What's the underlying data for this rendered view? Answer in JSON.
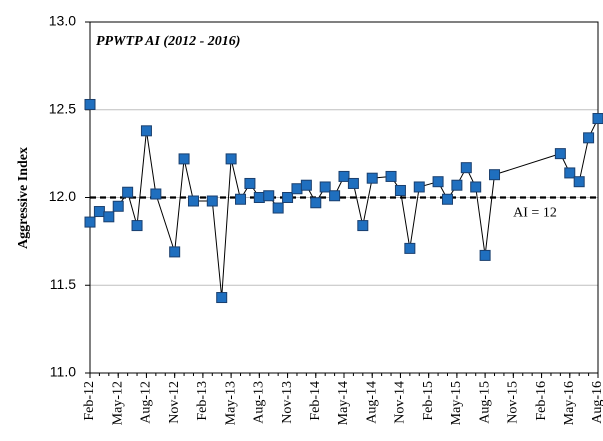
{
  "chart_data": {
    "type": "line",
    "title": "PPWTP AI (2012 - 2016)",
    "y_label": "Aggressive Index",
    "x": [
      "2012-02",
      "2012-02",
      "2012-03",
      "2012-04",
      "2012-05",
      "2012-06",
      "2012-07",
      "2012-08",
      "2012-09",
      "2012-11",
      "2012-12",
      "2013-01",
      "2013-03",
      "2013-04",
      "2013-05",
      "2013-06",
      "2013-07",
      "2013-08",
      "2013-09",
      "2013-10",
      "2013-11",
      "2013-12",
      "2014-01",
      "2014-02",
      "2014-03",
      "2014-04",
      "2014-05",
      "2014-06",
      "2014-07",
      "2014-08",
      "2014-10",
      "2014-11",
      "2014-12",
      "2015-01",
      "2015-03",
      "2015-04",
      "2015-05",
      "2015-06",
      "2015-07",
      "2015-08",
      "2015-09",
      "2016-04",
      "2016-05",
      "2016-06",
      "2016-07",
      "2016-08"
    ],
    "values": [
      12.53,
      11.86,
      11.92,
      11.89,
      11.95,
      12.03,
      11.84,
      12.38,
      12.02,
      11.69,
      12.22,
      11.98,
      11.98,
      11.43,
      12.22,
      11.99,
      12.08,
      12.0,
      12.01,
      11.94,
      12.0,
      12.05,
      12.07,
      11.97,
      12.06,
      12.01,
      12.12,
      12.08,
      11.84,
      12.11,
      12.12,
      12.04,
      11.71,
      12.06,
      12.09,
      11.99,
      12.07,
      12.17,
      12.06,
      11.67,
      12.13,
      12.25,
      12.14,
      12.09,
      12.34,
      12.45
    ],
    "line_color": "#000000",
    "marker_color": "#1f6fbf",
    "marker_edge": "#1a3f6e",
    "xlim": [
      "2012-02",
      "2016-08"
    ],
    "xticks": [
      {
        "value": "2012-02",
        "label": "Feb-12"
      },
      {
        "value": "2012-05",
        "label": "May-12"
      },
      {
        "value": "2012-08",
        "label": "Aug-12"
      },
      {
        "value": "2012-11",
        "label": "Nov-12"
      },
      {
        "value": "2013-02",
        "label": "Feb-13"
      },
      {
        "value": "2013-05",
        "label": "May-13"
      },
      {
        "value": "2013-08",
        "label": "Aug-13"
      },
      {
        "value": "2013-11",
        "label": "Nov-13"
      },
      {
        "value": "2014-02",
        "label": "Feb-14"
      },
      {
        "value": "2014-05",
        "label": "May-14"
      },
      {
        "value": "2014-08",
        "label": "Aug-14"
      },
      {
        "value": "2014-11",
        "label": "Nov-14"
      },
      {
        "value": "2015-02",
        "label": "Feb-15"
      },
      {
        "value": "2015-05",
        "label": "May-15"
      },
      {
        "value": "2015-08",
        "label": "Aug-15"
      },
      {
        "value": "2015-11",
        "label": "Nov-15"
      },
      {
        "value": "2016-02",
        "label": "Feb-16"
      },
      {
        "value": "2016-05",
        "label": "May-16"
      },
      {
        "value": "2016-08",
        "label": "Aug-16"
      }
    ],
    "ylim": [
      11,
      13
    ],
    "yticks": [
      {
        "value": 11,
        "label": "11.0"
      },
      11.5,
      {
        "value": 12,
        "label": "12.0"
      },
      12.5,
      {
        "value": 13,
        "label": "13.0"
      }
    ],
    "grid": true,
    "reference_line": {
      "value": 12,
      "label": "AI = 12"
    }
  }
}
